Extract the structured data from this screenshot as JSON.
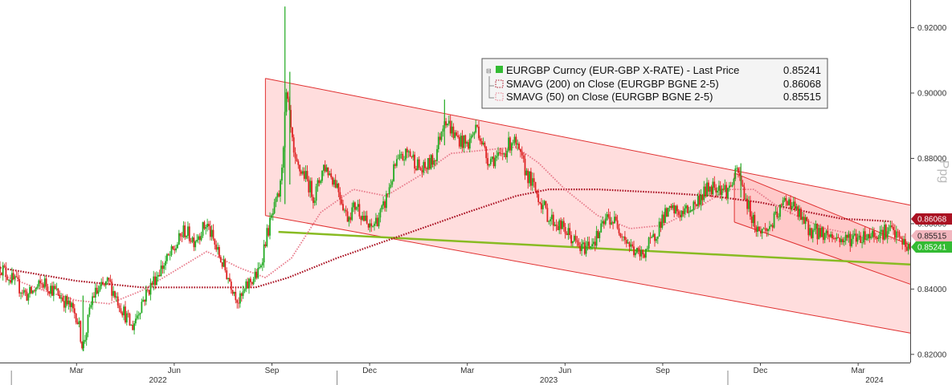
{
  "chart_data": {
    "type": "candlestick",
    "y_axis": {
      "title": "Ppg",
      "ticks": [
        0.82,
        0.84,
        0.86,
        0.88,
        0.9,
        0.92
      ],
      "tick_labels": [
        "0.82000",
        "0.84000",
        "0.86000",
        "0.88000",
        "0.90000",
        "0.92000"
      ],
      "ylim": [
        0.8175,
        0.9275
      ],
      "position": "right"
    },
    "x_axis": {
      "month_labels": [
        "Mar",
        "Jun",
        "Sep",
        "Dec",
        "Mar",
        "Jun",
        "Sep",
        "Dec",
        "Mar"
      ],
      "month_offsets": [
        2,
        5,
        8,
        11,
        14,
        17,
        20,
        23,
        26
      ],
      "year_labels": [
        "2022",
        "2023",
        "2024"
      ],
      "year_offsets": [
        4.5,
        16.5,
        26.5
      ],
      "range_months": [
        -0.35,
        27.6
      ]
    },
    "legend": {
      "placement": "top-center",
      "entries": [
        {
          "label": "EURGBP Curncy (EUR-GBP X-RATE) - Last Price",
          "value": "0.85241",
          "color": "#33bb33",
          "style": "candle"
        },
        {
          "label": "SMAVG (200)  on Close (EURGBP BGNE 2-5)",
          "value": "0.86068",
          "color": "#aa1122",
          "style": "dotted"
        },
        {
          "label": "SMAVG (50)  on Close (EURGBP BGNE 2-5)",
          "value": "0.85515",
          "color": "#e87c8c",
          "style": "dotted"
        }
      ]
    },
    "last_value_badges": [
      {
        "value": 0.86068,
        "label": "0.86068",
        "color": "#aa1122"
      },
      {
        "value": 0.85515,
        "label": "0.85515",
        "color": "#f2b6be"
      },
      {
        "value": 0.85241,
        "label": "0.85241",
        "color": "#33bb33"
      }
    ],
    "price_path": [
      [
        -0.35,
        0.847
      ],
      [
        0.0,
        0.843
      ],
      [
        0.5,
        0.838
      ],
      [
        1.0,
        0.842
      ],
      [
        1.5,
        0.838
      ],
      [
        2.0,
        0.832
      ],
      [
        2.2,
        0.822
      ],
      [
        2.5,
        0.838
      ],
      [
        3.0,
        0.842
      ],
      [
        3.4,
        0.834
      ],
      [
        3.7,
        0.828
      ],
      [
        4.0,
        0.836
      ],
      [
        4.5,
        0.845
      ],
      [
        5.0,
        0.852
      ],
      [
        5.3,
        0.858
      ],
      [
        5.6,
        0.855
      ],
      [
        6.0,
        0.86
      ],
      [
        6.3,
        0.852
      ],
      [
        6.6,
        0.845
      ],
      [
        7.0,
        0.836
      ],
      [
        7.3,
        0.842
      ],
      [
        7.6,
        0.845
      ],
      [
        7.8,
        0.855
      ],
      [
        8.0,
        0.862
      ],
      [
        8.25,
        0.87
      ],
      [
        8.45,
        0.9
      ],
      [
        8.7,
        0.878
      ],
      [
        9.0,
        0.875
      ],
      [
        9.3,
        0.868
      ],
      [
        9.6,
        0.878
      ],
      [
        10.0,
        0.872
      ],
      [
        10.3,
        0.862
      ],
      [
        10.6,
        0.866
      ],
      [
        11.0,
        0.858
      ],
      [
        11.4,
        0.864
      ],
      [
        11.8,
        0.878
      ],
      [
        12.2,
        0.882
      ],
      [
        12.6,
        0.876
      ],
      [
        13.0,
        0.88
      ],
      [
        13.3,
        0.893
      ],
      [
        13.6,
        0.887
      ],
      [
        14.0,
        0.884
      ],
      [
        14.3,
        0.89
      ],
      [
        14.6,
        0.88
      ],
      [
        15.0,
        0.88
      ],
      [
        15.4,
        0.886
      ],
      [
        15.8,
        0.876
      ],
      [
        16.0,
        0.872
      ],
      [
        16.5,
        0.862
      ],
      [
        17.0,
        0.858
      ],
      [
        17.5,
        0.852
      ],
      [
        18.0,
        0.856
      ],
      [
        18.3,
        0.862
      ],
      [
        18.6,
        0.86
      ],
      [
        19.0,
        0.853
      ],
      [
        19.3,
        0.85
      ],
      [
        19.7,
        0.855
      ],
      [
        20.0,
        0.862
      ],
      [
        20.3,
        0.864
      ],
      [
        20.6,
        0.863
      ],
      [
        21.0,
        0.866
      ],
      [
        21.3,
        0.87
      ],
      [
        21.6,
        0.872
      ],
      [
        22.0,
        0.87
      ],
      [
        22.3,
        0.876
      ],
      [
        22.6,
        0.866
      ],
      [
        22.9,
        0.858
      ],
      [
        23.2,
        0.858
      ],
      [
        23.5,
        0.862
      ],
      [
        23.8,
        0.868
      ],
      [
        24.1,
        0.864
      ],
      [
        24.5,
        0.858
      ],
      [
        25.0,
        0.857
      ],
      [
        25.5,
        0.855
      ],
      [
        26.0,
        0.856
      ],
      [
        26.5,
        0.857
      ],
      [
        27.0,
        0.858
      ],
      [
        27.3,
        0.855
      ],
      [
        27.6,
        0.852
      ]
    ],
    "spikes": [
      {
        "x": 8.4,
        "high": 0.9265,
        "low": 0.866
      },
      {
        "x": 8.55,
        "high": 0.9065,
        "low": 0.872
      },
      {
        "x": 13.3,
        "high": 0.898,
        "low": 0.884
      },
      {
        "x": 22.4,
        "high": 0.8785,
        "low": 0.868
      },
      {
        "x": 2.2,
        "high": 0.838,
        "low": 0.821
      }
    ],
    "sma200_path": [
      [
        -0.35,
        0.8465
      ],
      [
        2.0,
        0.8425
      ],
      [
        4.0,
        0.8405
      ],
      [
        6.0,
        0.8405
      ],
      [
        7.5,
        0.8405
      ],
      [
        8.5,
        0.8435
      ],
      [
        10.0,
        0.8495
      ],
      [
        12.0,
        0.8565
      ],
      [
        14.0,
        0.8635
      ],
      [
        15.5,
        0.8685
      ],
      [
        16.5,
        0.8705
      ],
      [
        18.0,
        0.8705
      ],
      [
        20.0,
        0.8695
      ],
      [
        21.5,
        0.8685
      ],
      [
        23.0,
        0.8665
      ],
      [
        24.5,
        0.8635
      ],
      [
        25.5,
        0.8615
      ],
      [
        26.5,
        0.861
      ],
      [
        27.0,
        0.8607
      ]
    ],
    "sma50_path": [
      [
        -0.35,
        0.8445
      ],
      [
        1.0,
        0.8395
      ],
      [
        2.0,
        0.8365
      ],
      [
        3.0,
        0.8355
      ],
      [
        4.0,
        0.8395
      ],
      [
        5.0,
        0.8455
      ],
      [
        6.0,
        0.8515
      ],
      [
        7.0,
        0.8465
      ],
      [
        7.8,
        0.8435
      ],
      [
        8.6,
        0.8495
      ],
      [
        9.5,
        0.8635
      ],
      [
        10.5,
        0.8705
      ],
      [
        11.5,
        0.8685
      ],
      [
        12.5,
        0.8745
      ],
      [
        13.5,
        0.8815
      ],
      [
        14.5,
        0.8825
      ],
      [
        15.5,
        0.8835
      ],
      [
        16.2,
        0.8785
      ],
      [
        17.0,
        0.8705
      ],
      [
        18.0,
        0.8625
      ],
      [
        19.0,
        0.8585
      ],
      [
        20.0,
        0.8595
      ],
      [
        21.0,
        0.8645
      ],
      [
        22.0,
        0.8705
      ],
      [
        22.8,
        0.8705
      ],
      [
        23.5,
        0.8655
      ],
      [
        24.3,
        0.8615
      ],
      [
        25.0,
        0.8585
      ],
      [
        26.0,
        0.8565
      ],
      [
        27.2,
        0.8552
      ]
    ],
    "channels": [
      {
        "upper": [
          [
            7.8,
            0.9045
          ],
          [
            27.6,
            0.8657
          ]
        ],
        "lower": [
          [
            7.8,
            0.8625
          ],
          [
            27.6,
            0.8265
          ]
        ],
        "fill": "#ffd9d9",
        "line": "#e03030"
      },
      {
        "upper": [
          [
            22.2,
            0.8755
          ],
          [
            27.6,
            0.8535
          ]
        ],
        "lower": [
          [
            22.2,
            0.8605
          ],
          [
            27.6,
            0.8415
          ]
        ],
        "fill": "#ffc6c6",
        "line": "#e03030"
      }
    ],
    "support_line": {
      "points": [
        [
          8.2,
          0.8575
        ],
        [
          27.6,
          0.8475
        ]
      ],
      "color": "#88bb22"
    }
  }
}
